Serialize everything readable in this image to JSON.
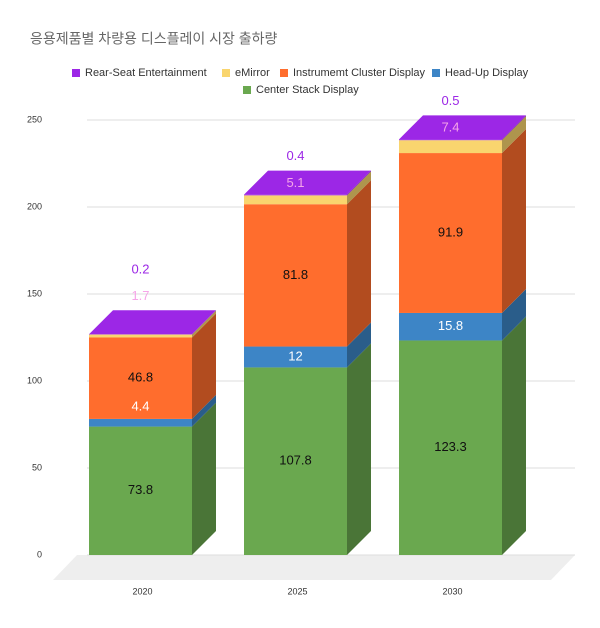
{
  "chart_data": {
    "type": "bar3d_stacked",
    "title": "응용제품별 차량용 디스플레이 시장 출하량",
    "categories": [
      "2020",
      "2025",
      "2030"
    ],
    "series": [
      {
        "name": "Rear-Seat Entertainment",
        "color": "#9c27e6",
        "values": [
          0.2,
          0.4,
          0.5
        ]
      },
      {
        "name": "eMirror",
        "color": "#f9d56e",
        "values": [
          1.7,
          5.1,
          7.4
        ]
      },
      {
        "name": "Instrumemt Cluster Display",
        "color": "#ff6d2d",
        "values": [
          46.8,
          81.8,
          91.9
        ]
      },
      {
        "name": "Head-Up Display",
        "color": "#3d85c6",
        "values": [
          4.4,
          12,
          15.8
        ]
      },
      {
        "name": "Center Stack Display",
        "color": "#6aa84f",
        "values": [
          73.8,
          107.8,
          123.3
        ]
      }
    ],
    "ylim": [
      0,
      250
    ],
    "yticks": [
      0,
      50,
      100,
      150,
      200,
      250
    ],
    "grid": true
  }
}
